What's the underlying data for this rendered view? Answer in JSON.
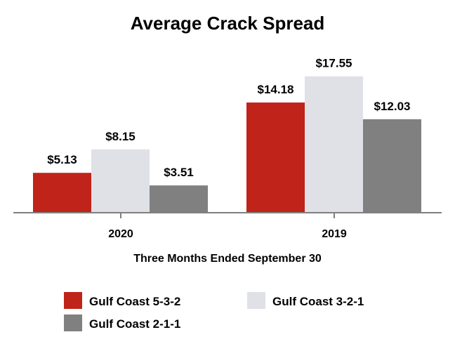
{
  "chart_data": {
    "type": "bar",
    "title": "Average Crack Spread",
    "xlabel": "Three Months Ended September 30",
    "ylabel": "",
    "categories": [
      "2020",
      "2019"
    ],
    "ylim": [
      0,
      20
    ],
    "grid": false,
    "legend_position": "bottom",
    "series": [
      {
        "name": "Gulf Coast 5-3-2",
        "values": [
          5.13,
          14.18
        ],
        "labels": [
          "$5.13",
          "$14.18"
        ],
        "color": "#c0231a"
      },
      {
        "name": "Gulf Coast 3-2-1",
        "values": [
          8.15,
          17.55
        ],
        "labels": [
          "$8.15",
          "$17.55"
        ],
        "color": "#e0e1e6"
      },
      {
        "name": "Gulf Coast 2-1-1",
        "values": [
          3.51,
          12.03
        ],
        "labels": [
          "$3.51",
          "$12.03"
        ],
        "color": "#808080"
      }
    ]
  },
  "colors": {
    "axis": "#7f7f7f",
    "text": "#000000"
  }
}
